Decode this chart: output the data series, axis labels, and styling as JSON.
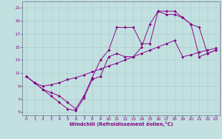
{
  "xlabel": "Windchill (Refroidissement éolien,°C)",
  "bg_color": "#c2e0e0",
  "line_color": "#880088",
  "grid_color": "#a8cccc",
  "xlim": [
    -0.5,
    23.5
  ],
  "ylim": [
    4.5,
    22
  ],
  "xticks": [
    0,
    1,
    2,
    3,
    4,
    5,
    6,
    7,
    8,
    9,
    10,
    11,
    12,
    13,
    14,
    15,
    16,
    17,
    18,
    19,
    20,
    21,
    22,
    23
  ],
  "yticks": [
    5,
    7,
    9,
    11,
    13,
    15,
    17,
    19,
    21
  ],
  "line1_x": [
    0,
    1,
    2,
    3,
    4,
    5,
    6,
    7,
    8,
    9,
    10,
    11,
    12,
    13,
    14,
    15,
    16,
    17,
    18,
    19,
    20,
    21,
    22,
    23
  ],
  "line1_y": [
    10.5,
    9.5,
    8.5,
    7.5,
    6.5,
    5.5,
    5.2,
    7.2,
    10.0,
    10.5,
    13.5,
    14.0,
    13.5,
    13.5,
    15.0,
    18.5,
    20.5,
    20.0,
    20.0,
    19.5,
    18.5,
    13.5,
    14.0,
    14.5
  ],
  "line2_x": [
    0,
    1,
    2,
    3,
    4,
    5,
    6,
    7,
    8,
    9,
    10,
    11,
    12,
    13,
    14,
    15,
    16,
    17,
    18,
    19,
    20,
    21,
    22,
    23
  ],
  "line2_y": [
    10.5,
    9.5,
    8.5,
    8.0,
    7.5,
    6.5,
    5.5,
    7.5,
    10.3,
    13.0,
    14.5,
    18.0,
    18.0,
    18.0,
    15.5,
    15.5,
    20.5,
    20.5,
    20.5,
    19.5,
    18.5,
    18.0,
    14.0,
    14.5
  ],
  "line3_x": [
    0,
    1,
    2,
    3,
    4,
    5,
    6,
    7,
    8,
    9,
    10,
    11,
    12,
    13,
    14,
    15,
    16,
    17,
    18,
    19,
    20,
    21,
    22,
    23
  ],
  "line3_y": [
    10.5,
    9.5,
    9.0,
    9.2,
    9.5,
    10.0,
    10.3,
    10.7,
    11.2,
    11.6,
    12.1,
    12.5,
    13.0,
    13.5,
    14.0,
    14.5,
    15.0,
    15.5,
    16.0,
    13.5,
    13.8,
    14.2,
    14.5,
    14.8
  ]
}
